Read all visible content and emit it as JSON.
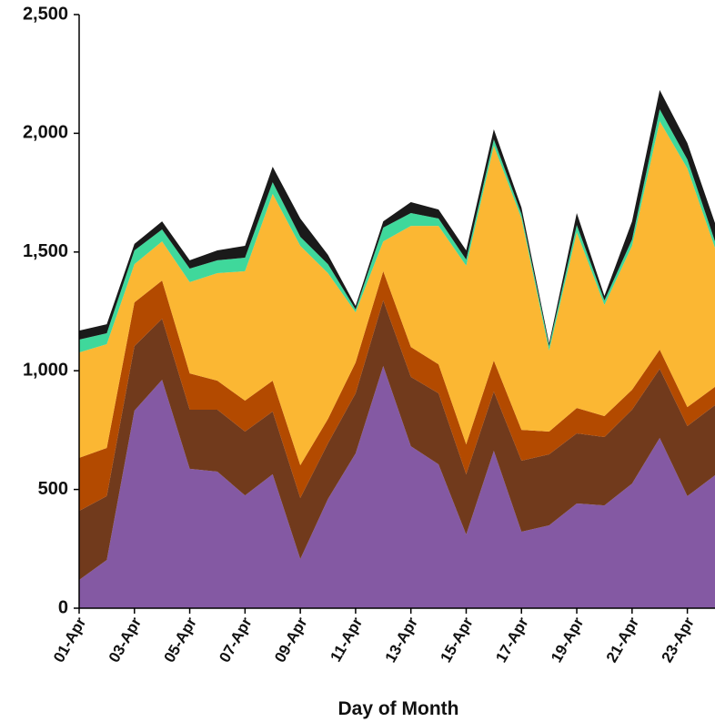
{
  "chart_data": {
    "type": "stacked_area",
    "x_label": "Day of Month",
    "categories": [
      "01-Apr",
      null,
      "03-Apr",
      null,
      "05-Apr",
      null,
      "07-Apr",
      null,
      "09-Apr",
      null,
      "11-Apr",
      null,
      "13-Apr",
      null,
      "15-Apr",
      null,
      "17-Apr",
      null,
      "19-Apr",
      null,
      "21-Apr",
      null,
      "23-Apr",
      null
    ],
    "series": [
      {
        "color": "#8459a3",
        "values": [
          119,
          203,
          832,
          962,
          587,
          575,
          475,
          564,
          207,
          460,
          652,
          1020,
          682,
          606,
          310,
          663,
          322,
          349,
          441,
          433,
          525,
          717,
          472,
          560
        ]
      },
      {
        "color": "#713a1c",
        "values": [
          291,
          269,
          272,
          257,
          249,
          261,
          269,
          264,
          257,
          234,
          253,
          276,
          292,
          299,
          254,
          249,
          299,
          299,
          295,
          288,
          311,
          291,
          295,
          295
        ]
      },
      {
        "color": "#b34a00",
        "values": [
          223,
          203,
          184,
          161,
          153,
          122,
          130,
          130,
          138,
          103,
          130,
          123,
          126,
          122,
          126,
          131,
          130,
          96,
          107,
          88,
          84,
          81,
          80,
          77
        ]
      },
      {
        "color": "#fbb733",
        "values": [
          444,
          437,
          161,
          165,
          384,
          453,
          545,
          787,
          924,
          614,
          211,
          126,
          510,
          583,
          752,
          905,
          890,
          341,
          740,
          468,
          606,
          962,
          1005,
          586
        ]
      },
      {
        "color": "#3fd89b",
        "values": [
          54,
          46,
          58,
          50,
          57,
          54,
          57,
          49,
          38,
          38,
          12,
          58,
          54,
          31,
          26,
          26,
          19,
          19,
          31,
          19,
          27,
          50,
          38,
          27
        ]
      },
      {
        "color": "#1a1a1a",
        "values": [
          38,
          38,
          27,
          34,
          35,
          42,
          50,
          65,
          77,
          39,
          15,
          26,
          46,
          38,
          39,
          43,
          27,
          12,
          50,
          19,
          76,
          81,
          69,
          77
        ]
      }
    ],
    "ylim": [
      0,
      2500
    ],
    "yticks": [
      0,
      500,
      {
        "value": 1000,
        "label": "1,000"
      },
      {
        "value": 1500,
        "label": "1,500"
      },
      {
        "value": 2000,
        "label": "2,000"
      },
      {
        "value": 2500,
        "label": "2,500"
      }
    ]
  }
}
